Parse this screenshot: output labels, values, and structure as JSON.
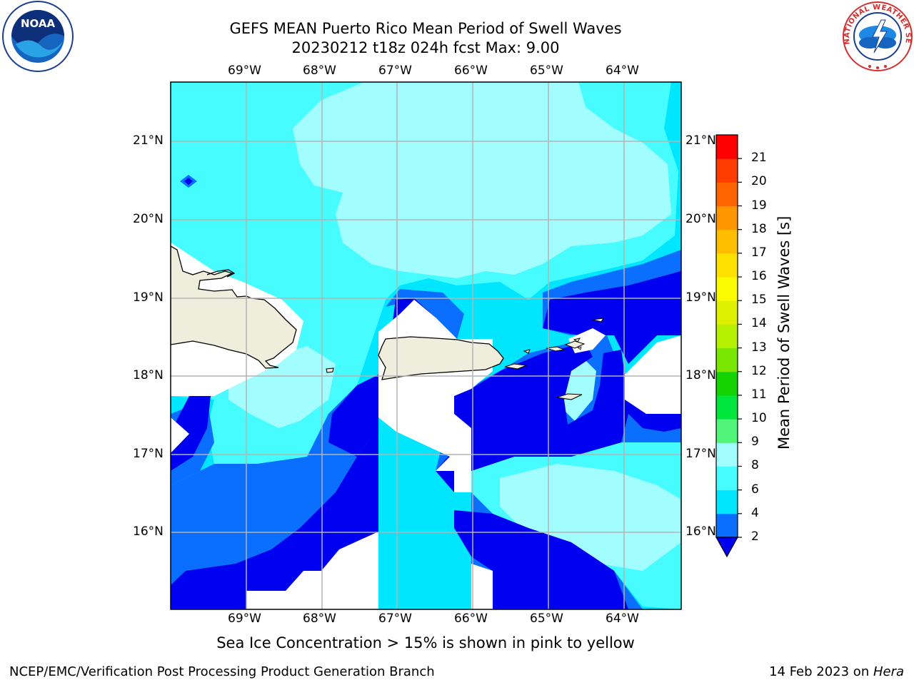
{
  "header": {
    "title_line1": "GEFS MEAN Puerto Rico Mean Period of Swell Waves",
    "title_line2": "20230212 t18z 024h fcst   Max: 9.00"
  },
  "logos": {
    "left": {
      "name": "noaa-logo",
      "text": "NOAA"
    },
    "right": {
      "name": "nws-logo",
      "text": "NATIONAL WEATHER SERVICE"
    }
  },
  "map": {
    "lon_labels": [
      "69°W",
      "68°W",
      "67°W",
      "66°W",
      "65°W",
      "64°W"
    ],
    "lat_labels": [
      "21°N",
      "20°N",
      "19°N",
      "18°N",
      "17°N",
      "16°N"
    ],
    "colors": {
      "land": "#efeedc",
      "lt2": "#0000f0",
      "c2_4": "#0a6eff",
      "c4_6": "#00e6ff",
      "c6_8": "#46fcff",
      "c8_9": "#a2fdff",
      "none": "#ffffff",
      "grid": "#b4b4b4"
    }
  },
  "colorbar": {
    "label": "Mean Period of Swell Waves [s]",
    "ticks": [
      "2",
      "4",
      "6",
      "8",
      "9",
      "10",
      "11",
      "12",
      "13",
      "14",
      "15",
      "16",
      "17",
      "18",
      "19",
      "20",
      "21"
    ],
    "colors": [
      "#0a6eff",
      "#00e6ff",
      "#46fcff",
      "#a2fdff",
      "#50f57a",
      "#00e63c",
      "#14d200",
      "#78e600",
      "#b4f000",
      "#dcf000",
      "#fafa00",
      "#ffe100",
      "#ffbe00",
      "#ff9600",
      "#ff6400",
      "#ff3c00",
      "#ff0000"
    ],
    "extend_color": "#0000f0"
  },
  "caption": "Sea Ice Concentration > 15% is shown in pink to yellow",
  "footer": {
    "left": "NCEP/EMC/Verification Post Processing Product Generation Branch",
    "right_date": "14 Feb 2023 on ",
    "right_host": "Hera"
  }
}
